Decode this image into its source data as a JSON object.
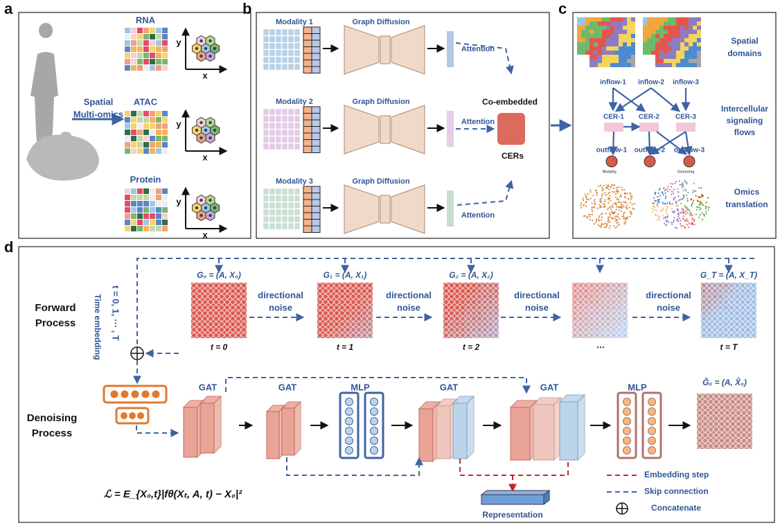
{
  "panel_labels": [
    "a",
    "b",
    "c",
    "d"
  ],
  "panel_a": {
    "modalities": [
      "RNA",
      "ATAC",
      "Protein"
    ],
    "axis_x": "x",
    "axis_y": "y",
    "arrow_label": [
      "Spatial",
      "Multi-omics"
    ]
  },
  "panel_b": {
    "modalities": [
      "Modality 1",
      "Modality 2",
      "Modality 3"
    ],
    "diffusion": "Graph Diffusion",
    "attention": "Attention",
    "co_embedded": "Co-embedded",
    "cers": "CERs"
  },
  "panel_c": {
    "spatial": [
      "Spatial",
      "domains"
    ],
    "inflows": [
      "inflow-1",
      "inflow-2",
      "inflow-3"
    ],
    "cers": [
      "CER-1",
      "CER-2",
      "CER-3"
    ],
    "outflows": [
      "outflow-1",
      "outflow-2",
      "outflow-3"
    ],
    "signaling": [
      "Intercellular",
      "signaling",
      "flows"
    ],
    "small_labels": [
      "Modality",
      "Clustering"
    ],
    "omics": [
      "Omics",
      "translation"
    ]
  },
  "panel_d": {
    "forward": [
      "Forward",
      "Process"
    ],
    "denoising": [
      "Denoising",
      "Process"
    ],
    "time_embedding": "Time embedding",
    "time_range": "t = 0, 1, ⋯ , T",
    "graph_labels": [
      "G₀ = (A, X₀)",
      "G₁ = (A, X₁)",
      "G₂ = (A, X₂)",
      "G_T = (A, X_T)"
    ],
    "time_labels": [
      "t = 0",
      "t = 1",
      "t = 2",
      "⋯",
      "t = T"
    ],
    "noise": [
      "directional",
      "noise"
    ],
    "layers": [
      "GAT",
      "GAT",
      "MLP",
      "GAT",
      "GAT",
      "MLP"
    ],
    "output": "Ĝ₀ = (A, X̂₀)",
    "loss": "ℒ = E_{X₀,t}|fθ(Xₜ, A, t) − X₀|²",
    "representation": "Representation",
    "legend": [
      "Embedding step",
      "Skip connection",
      "Concatenate"
    ]
  }
}
